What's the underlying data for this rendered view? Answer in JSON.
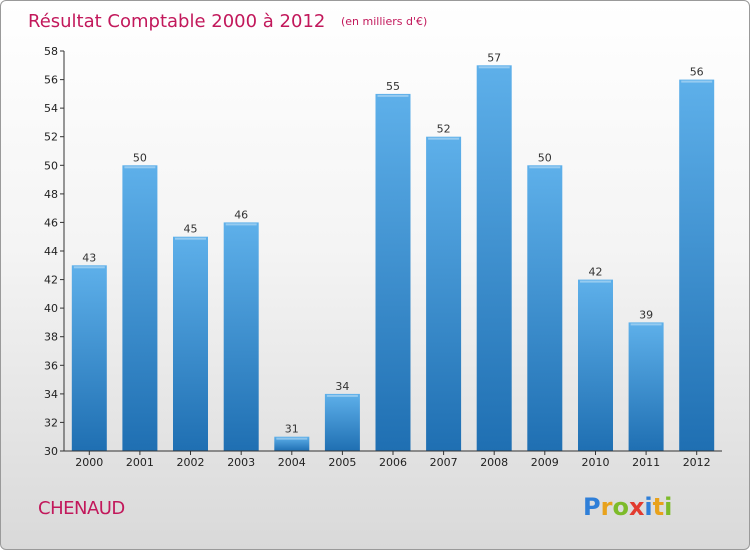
{
  "colors": {
    "title": "#c2185b",
    "bar_top": "#5eb0ea",
    "bar_bottom": "#1f6fb2",
    "axis": "#333333"
  },
  "chart_data": {
    "type": "bar",
    "title": "Résultat Comptable 2000 à 2012",
    "subtitle": "(en milliers d'€)",
    "categories": [
      "2000",
      "2001",
      "2002",
      "2003",
      "2004",
      "2005",
      "2006",
      "2007",
      "2008",
      "2009",
      "2010",
      "2011",
      "2012"
    ],
    "values": [
      43,
      50,
      45,
      46,
      31,
      34,
      55,
      52,
      57,
      50,
      42,
      39,
      56
    ],
    "xlabel": "",
    "ylabel": "",
    "ylim": [
      30,
      58
    ],
    "yticks": [
      30,
      32,
      34,
      36,
      38,
      40,
      42,
      44,
      46,
      48,
      50,
      52,
      54,
      56,
      58
    ],
    "grid": false,
    "legend": "none"
  },
  "footer": {
    "commune": "CHENAUD",
    "logo_letters": [
      {
        "ch": "P",
        "color": "#2f7fd8"
      },
      {
        "ch": "r",
        "color": "#e8a21c"
      },
      {
        "ch": "o",
        "color": "#7dbb2a"
      },
      {
        "ch": "x",
        "color": "#e23b2f"
      },
      {
        "ch": "i",
        "color": "#2f7fd8"
      },
      {
        "ch": "t",
        "color": "#e8a21c"
      },
      {
        "ch": "i",
        "color": "#7dbb2a"
      }
    ]
  }
}
